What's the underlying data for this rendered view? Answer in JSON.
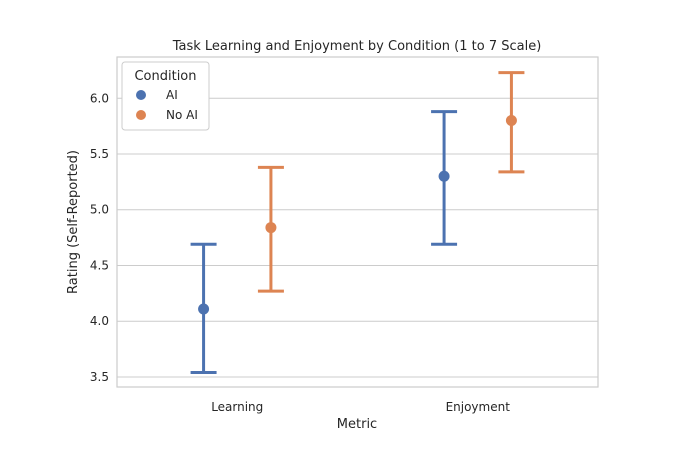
{
  "chart_data": {
    "type": "pointplot",
    "title": "Task Learning and Enjoyment by Condition (1 to 7 Scale)",
    "xlabel": "Metric",
    "ylabel": "Rating (Self-Reported)",
    "categories": [
      "Learning",
      "Enjoyment"
    ],
    "ylim": [
      3.41,
      6.37
    ],
    "yticks": [
      "3.5",
      "4.0",
      "4.5",
      "5.0",
      "5.5",
      "6.0"
    ],
    "grid": true,
    "legend": {
      "title": "Condition",
      "placement": "top-left"
    },
    "series": [
      {
        "name": "AI",
        "color": "#4c72b0",
        "values": [
          4.11,
          5.3
        ],
        "lower": [
          3.54,
          4.69
        ],
        "upper": [
          4.69,
          5.88
        ]
      },
      {
        "name": "No AI",
        "color": "#dd8452",
        "values": [
          4.84,
          5.8
        ],
        "lower": [
          4.27,
          5.34
        ],
        "upper": [
          5.38,
          6.23
        ]
      }
    ]
  }
}
